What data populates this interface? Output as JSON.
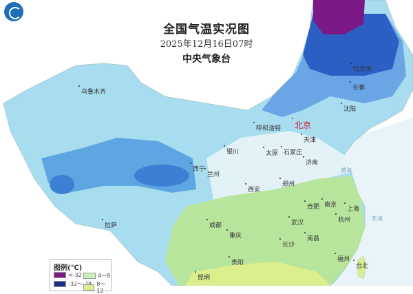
{
  "header": {
    "title": "全国气温实况图",
    "datetime": "2025年12月16日07时",
    "issuer": "中央气象台"
  },
  "logo": {
    "icon": "cma-logo-icon"
  },
  "cities": {
    "beijing": "北京",
    "tianjin": "天津",
    "shijiazhuang": "石家庄",
    "taiyuan": "太原",
    "hohhot": "呼和浩特",
    "harbin": "哈尔滨",
    "changchun": "长春",
    "shenyang": "沈阳",
    "urumqi": "乌鲁木齐",
    "lhasa": "拉萨",
    "xining": "西宁",
    "lanzhou": "兰州",
    "yinchuan": "银川",
    "xian": "西安",
    "zhengzhou": "郑州",
    "jinan": "济南",
    "hefei": "合肥",
    "nanjing": "南京",
    "shanghai": "上海",
    "hangzhou": "杭州",
    "chengdu": "成都",
    "chongqing": "重庆",
    "wuhan": "武汉",
    "nanchang": "南昌",
    "changsha": "长沙",
    "fuzhou": "福州",
    "taipei": "台北",
    "guiyang": "贵阳",
    "kunming": "昆明"
  },
  "seas": {
    "yellow_sea": "黄海",
    "east_sea": "东海"
  },
  "legend": {
    "title": "图例(℃)",
    "items": [
      {
        "label": "<-32",
        "color": "#7b1a86"
      },
      {
        "label": "-32～-28",
        "color": "#1c2f85"
      },
      {
        "label": "4～8",
        "color": "#c9f0b5"
      },
      {
        "label": "8～12",
        "color": "#d8f08e"
      }
    ]
  },
  "colors": {
    "sea": "#e9f4f9",
    "cold_light": "#a8ddf0",
    "cold_mid": "#5ea6e2",
    "cold_deep": "#2b5fc4",
    "neutral": "#e8f3f6",
    "mild": "#b8e59c",
    "warm": "#dcef8e"
  }
}
